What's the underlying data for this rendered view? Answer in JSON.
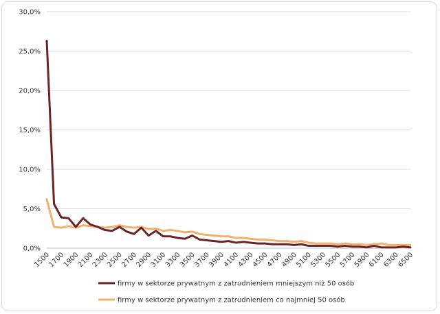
{
  "chart_data": {
    "type": "line",
    "title": "",
    "xlabel": "",
    "ylabel": "",
    "ylim": [
      0,
      30
    ],
    "y_ticks": [
      "0,0%",
      "5,0%",
      "10,0%",
      "15,0%",
      "20,0%",
      "25,0%",
      "30,0%"
    ],
    "x_tick_labels": [
      "1500",
      "1700",
      "1900",
      "2100",
      "2300",
      "2500",
      "2700",
      "2900",
      "3100",
      "3300",
      "3500",
      "3700",
      "3900",
      "4100",
      "4300",
      "4500",
      "4700",
      "4900",
      "5100",
      "5300",
      "5500",
      "5700",
      "5900",
      "6100",
      "6300",
      "6500"
    ],
    "x": [
      1500,
      1600,
      1700,
      1800,
      1900,
      2000,
      2100,
      2200,
      2300,
      2400,
      2500,
      2600,
      2700,
      2800,
      2900,
      3000,
      3100,
      3200,
      3300,
      3400,
      3500,
      3600,
      3700,
      3800,
      3900,
      4000,
      4100,
      4200,
      4300,
      4400,
      4500,
      4600,
      4700,
      4800,
      4900,
      5000,
      5100,
      5200,
      5300,
      5400,
      5500,
      5600,
      5700,
      5800,
      5900,
      6000,
      6100,
      6200,
      6300,
      6400,
      6500
    ],
    "legend_position": "bottom",
    "grid": "horizontal",
    "series": [
      {
        "name": "firmy w sektorze prywatnym z zatrudnieniem mniejszym niż 50 osób",
        "color": "#6b2426",
        "values": [
          26.3,
          5.6,
          3.9,
          3.8,
          2.7,
          3.8,
          3.0,
          2.7,
          2.3,
          2.2,
          2.7,
          2.1,
          1.8,
          2.6,
          1.6,
          2.2,
          1.5,
          1.5,
          1.3,
          1.2,
          1.6,
          1.1,
          1.0,
          0.9,
          0.8,
          0.9,
          0.7,
          0.8,
          0.7,
          0.6,
          0.6,
          0.5,
          0.5,
          0.5,
          0.4,
          0.5,
          0.3,
          0.3,
          0.3,
          0.3,
          0.2,
          0.3,
          0.2,
          0.2,
          0.1,
          0.3,
          0.1,
          0.1,
          0.1,
          0.2,
          0.1
        ]
      },
      {
        "name": "firmy w sektorze prywatnym z zatrudnieniem co najmniej 50 osób",
        "color": "#f0b06e",
        "values": [
          6.2,
          2.7,
          2.6,
          2.8,
          2.6,
          2.9,
          2.8,
          2.7,
          2.6,
          2.7,
          2.9,
          2.7,
          2.6,
          2.7,
          2.4,
          2.5,
          2.2,
          2.3,
          2.2,
          2.0,
          2.1,
          1.8,
          1.7,
          1.6,
          1.5,
          1.5,
          1.3,
          1.3,
          1.2,
          1.1,
          1.1,
          1.0,
          0.9,
          0.9,
          0.8,
          0.9,
          0.7,
          0.6,
          0.6,
          0.6,
          0.5,
          0.6,
          0.5,
          0.5,
          0.4,
          0.5,
          0.6,
          0.4,
          0.4,
          0.4,
          0.4
        ]
      }
    ]
  }
}
